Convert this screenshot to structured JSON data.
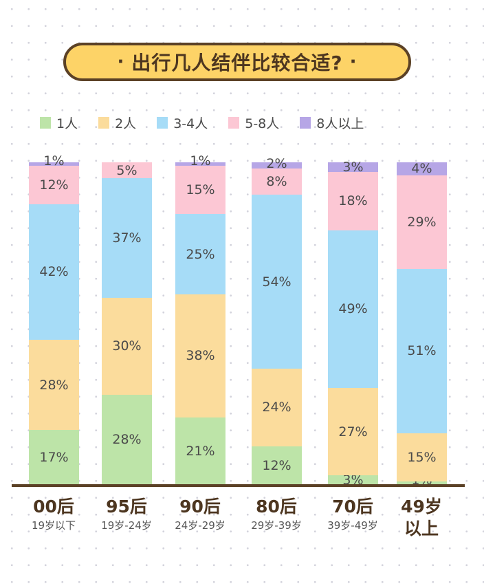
{
  "title": "出行几人结伴比较合适?",
  "title_dot": "·",
  "colors": {
    "1人": "#bde4a8",
    "2人": "#fbdc9c",
    "3-4人": "#a6dcf7",
    "5-8人": "#fcc7d4",
    "8人以上": "#b6a6e6",
    "pill": "#fdd367",
    "brown": "#5b4126"
  },
  "legend": [
    {
      "label": "1人",
      "color": "#bde4a8"
    },
    {
      "label": "2人",
      "color": "#fbdc9c"
    },
    {
      "label": "3-4人",
      "color": "#a6dcf7"
    },
    {
      "label": "5-8人",
      "color": "#fcc7d4"
    },
    {
      "label": "8人以上",
      "color": "#b6a6e6"
    }
  ],
  "categories": [
    {
      "main": "00后",
      "sub": "19岁以下"
    },
    {
      "main": "95后",
      "sub": "19岁-24岁"
    },
    {
      "main": "90后",
      "sub": "24岁-29岁"
    },
    {
      "main": "80后",
      "sub": "29岁-39岁"
    },
    {
      "main": "70后",
      "sub": "39岁-49岁"
    },
    {
      "main": "49岁",
      "sub": "以上"
    }
  ],
  "chart_data": {
    "type": "bar",
    "stacked": true,
    "title": "出行几人结伴比较合适?",
    "categories": [
      "00后",
      "95后",
      "90后",
      "80后",
      "70后",
      "49岁以上"
    ],
    "category_sublabels": [
      "19岁以下",
      "19岁-24岁",
      "24岁-29岁",
      "29岁-39岁",
      "39岁-49岁",
      "以上"
    ],
    "series": [
      {
        "name": "1人",
        "values": [
          17,
          28,
          21,
          12,
          3,
          1
        ]
      },
      {
        "name": "2人",
        "values": [
          28,
          30,
          38,
          24,
          27,
          15
        ]
      },
      {
        "name": "3-4人",
        "values": [
          42,
          37,
          25,
          54,
          49,
          51
        ]
      },
      {
        "name": "5-8人",
        "values": [
          12,
          5,
          15,
          8,
          18,
          29
        ]
      },
      {
        "name": "8人以上",
        "values": [
          1,
          0,
          1,
          2,
          3,
          4
        ]
      }
    ],
    "value_labels": [
      [
        "17%",
        "28%",
        "42%",
        "12%",
        "1%"
      ],
      [
        "28%",
        "30%",
        "37%",
        "5%",
        ""
      ],
      [
        "21%",
        "38%",
        "25%",
        "15%",
        "1%"
      ],
      [
        "12%",
        "24%",
        "54%",
        "8%",
        "2%"
      ],
      [
        "3%",
        "27%",
        "49%",
        "18%",
        "3%"
      ],
      [
        "1%",
        "15%",
        "51%",
        "29%",
        "4%"
      ]
    ],
    "ylim": [
      0,
      100
    ],
    "legend_position": "top",
    "grid": false,
    "xlabel": "",
    "ylabel": ""
  }
}
